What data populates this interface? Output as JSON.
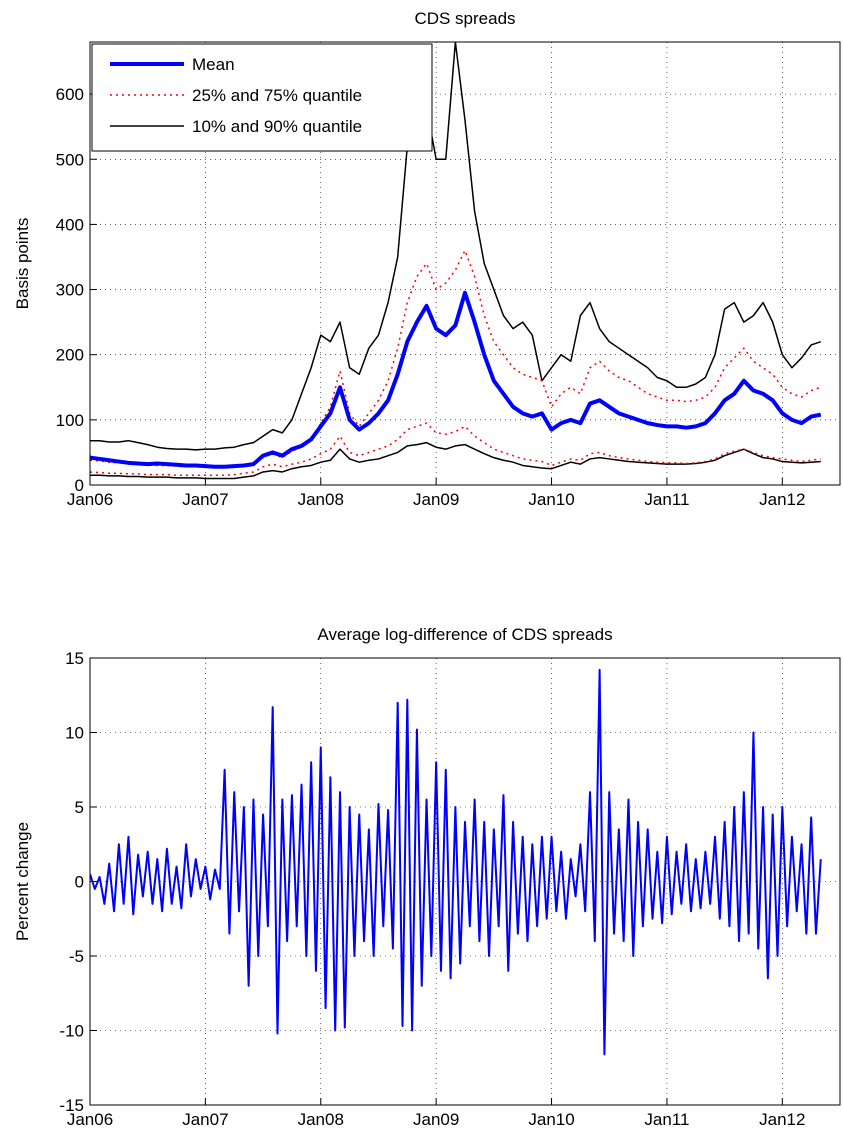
{
  "chart_data": [
    {
      "type": "line",
      "title": "CDS spreads",
      "ylabel": "Basis points",
      "grid": true,
      "legend": "upper left",
      "x": [
        0,
        1,
        2,
        3,
        4,
        5,
        6,
        7,
        8,
        9,
        10,
        11,
        12,
        13,
        14,
        15,
        16,
        17,
        18,
        19,
        20,
        21,
        22,
        23,
        24,
        25,
        26,
        27,
        28,
        29,
        30,
        31,
        32,
        33,
        34,
        35,
        36,
        37,
        38,
        39,
        40,
        41,
        42,
        43,
        44,
        45,
        46,
        47,
        48,
        49,
        50,
        51,
        52,
        53,
        54,
        55,
        56,
        57,
        58,
        59,
        60,
        61,
        62,
        63,
        64,
        65,
        66,
        67,
        68,
        69,
        70,
        71,
        72,
        73,
        74,
        75,
        76
      ],
      "xlim": [
        0,
        78
      ],
      "xticks": [
        {
          "value": 0,
          "label": "Jan06"
        },
        {
          "value": 12,
          "label": "Jan07"
        },
        {
          "value": 24,
          "label": "Jan08"
        },
        {
          "value": 36,
          "label": "Jan09"
        },
        {
          "value": 48,
          "label": "Jan10"
        },
        {
          "value": 60,
          "label": "Jan11"
        },
        {
          "value": 72,
          "label": "Jan12"
        }
      ],
      "ylim": [
        0,
        680
      ],
      "yticks": [
        0,
        100,
        200,
        300,
        400,
        500,
        600
      ],
      "series": [
        {
          "name": "Mean",
          "color": "#0000ff",
          "linestyle": "solid",
          "linewidth": 4,
          "values": [
            42,
            40,
            38,
            36,
            34,
            33,
            32,
            33,
            32,
            31,
            30,
            30,
            29,
            28,
            28,
            29,
            30,
            32,
            45,
            50,
            45,
            55,
            60,
            70,
            90,
            110,
            150,
            100,
            85,
            95,
            110,
            130,
            170,
            220,
            250,
            275,
            240,
            230,
            245,
            295,
            250,
            200,
            160,
            140,
            120,
            110,
            105,
            110,
            85,
            95,
            100,
            95,
            125,
            130,
            120,
            110,
            105,
            100,
            95,
            92,
            90,
            90,
            88,
            90,
            95,
            110,
            130,
            140,
            160,
            145,
            140,
            130,
            110,
            100,
            95,
            105,
            108
          ]
        },
        {
          "name": "25% and 75% quantile",
          "color": "#ff0000",
          "linestyle": "dotted",
          "linewidth": 1.5,
          "lower": [
            20,
            19,
            18,
            18,
            17,
            17,
            16,
            16,
            16,
            15,
            15,
            15,
            15,
            15,
            15,
            16,
            18,
            20,
            28,
            32,
            28,
            32,
            35,
            40,
            48,
            55,
            75,
            50,
            45,
            50,
            55,
            60,
            70,
            85,
            90,
            95,
            80,
            78,
            82,
            90,
            75,
            65,
            55,
            50,
            45,
            40,
            38,
            36,
            30,
            35,
            40,
            38,
            48,
            50,
            45,
            42,
            40,
            38,
            36,
            35,
            34,
            34,
            33,
            34,
            36,
            40,
            48,
            52,
            55,
            50,
            45,
            42,
            40,
            38,
            36,
            38,
            40
          ],
          "upper": [
            38,
            37,
            35,
            34,
            33,
            32,
            31,
            30,
            30,
            29,
            28,
            28,
            27,
            27,
            27,
            28,
            30,
            32,
            42,
            48,
            42,
            52,
            58,
            70,
            95,
            120,
            175,
            110,
            90,
            110,
            130,
            160,
            210,
            280,
            320,
            340,
            300,
            310,
            330,
            360,
            320,
            260,
            220,
            200,
            180,
            170,
            165,
            160,
            120,
            140,
            150,
            140,
            180,
            190,
            175,
            165,
            160,
            150,
            140,
            135,
            130,
            130,
            128,
            130,
            135,
            150,
            180,
            195,
            210,
            190,
            180,
            170,
            150,
            140,
            135,
            145,
            150
          ]
        },
        {
          "name": "10% and 90% quantile",
          "color": "#000000",
          "linestyle": "solid",
          "linewidth": 1.5,
          "lower": [
            15,
            15,
            14,
            14,
            13,
            13,
            12,
            12,
            12,
            11,
            11,
            11,
            10,
            10,
            10,
            10,
            12,
            14,
            20,
            22,
            20,
            25,
            28,
            30,
            35,
            38,
            55,
            40,
            35,
            38,
            40,
            45,
            50,
            60,
            62,
            65,
            58,
            55,
            60,
            62,
            55,
            48,
            42,
            38,
            35,
            30,
            28,
            26,
            25,
            30,
            35,
            32,
            40,
            42,
            40,
            38,
            36,
            35,
            34,
            33,
            32,
            32,
            32,
            33,
            35,
            38,
            45,
            50,
            55,
            48,
            42,
            40,
            36,
            35,
            34,
            35,
            36
          ],
          "upper": [
            68,
            68,
            66,
            66,
            68,
            65,
            62,
            58,
            56,
            55,
            55,
            54,
            55,
            55,
            57,
            58,
            62,
            65,
            75,
            85,
            80,
            100,
            140,
            180,
            230,
            220,
            250,
            180,
            170,
            210,
            230,
            280,
            350,
            520,
            600,
            580,
            500,
            500,
            680,
            560,
            420,
            340,
            300,
            260,
            240,
            250,
            230,
            160,
            180,
            200,
            190,
            260,
            280,
            240,
            220,
            210,
            200,
            190,
            180,
            165,
            160,
            150,
            150,
            155,
            165,
            200,
            270,
            280,
            250,
            260,
            280,
            250,
            200,
            180,
            195,
            215,
            220
          ]
        }
      ]
    },
    {
      "type": "line",
      "title": "Average log-difference of CDS spreads",
      "ylabel": "Percent change",
      "grid": true,
      "x": [
        0,
        0.5,
        1,
        1.5,
        2,
        2.5,
        3,
        3.5,
        4,
        4.5,
        5,
        5.5,
        6,
        6.5,
        7,
        7.5,
        8,
        8.5,
        9,
        9.5,
        10,
        10.5,
        11,
        11.5,
        12,
        12.5,
        13,
        13.5,
        14,
        14.5,
        15,
        15.5,
        16,
        16.5,
        17,
        17.5,
        18,
        18.5,
        19,
        19.5,
        20,
        20.5,
        21,
        21.5,
        22,
        22.5,
        23,
        23.5,
        24,
        24.5,
        25,
        25.5,
        26,
        26.5,
        27,
        27.5,
        28,
        28.5,
        29,
        29.5,
        30,
        30.5,
        31,
        31.5,
        32,
        32.5,
        33,
        33.5,
        34,
        34.5,
        35,
        35.5,
        36,
        36.5,
        37,
        37.5,
        38,
        38.5,
        39,
        39.5,
        40,
        40.5,
        41,
        41.5,
        42,
        42.5,
        43,
        43.5,
        44,
        44.5,
        45,
        45.5,
        46,
        46.5,
        47,
        47.5,
        48,
        48.5,
        49,
        49.5,
        50,
        50.5,
        51,
        51.5,
        52,
        52.5,
        53,
        53.5,
        54,
        54.5,
        55,
        55.5,
        56,
        56.5,
        57,
        57.5,
        58,
        58.5,
        59,
        59.5,
        60,
        60.5,
        61,
        61.5,
        62,
        62.5,
        63,
        63.5,
        64,
        64.5,
        65,
        65.5,
        66,
        66.5,
        67,
        67.5,
        68,
        68.5,
        69,
        69.5,
        70,
        70.5,
        71,
        71.5,
        72,
        72.5,
        73,
        73.5,
        74,
        74.5,
        75,
        75.5,
        76
      ],
      "xlim": [
        0,
        78
      ],
      "xticks": [
        {
          "value": 0,
          "label": "Jan06"
        },
        {
          "value": 12,
          "label": "Jan07"
        },
        {
          "value": 24,
          "label": "Jan08"
        },
        {
          "value": 36,
          "label": "Jan09"
        },
        {
          "value": 48,
          "label": "Jan10"
        },
        {
          "value": 60,
          "label": "Jan11"
        },
        {
          "value": 72,
          "label": "Jan12"
        }
      ],
      "ylim": [
        -15,
        15
      ],
      "yticks": [
        -15,
        -10,
        -5,
        0,
        5,
        10,
        15
      ],
      "series": [
        {
          "color": "#0000ff",
          "linestyle": "solid",
          "linewidth": 2,
          "values": [
            0.5,
            -0.5,
            0.3,
            -1.5,
            1.2,
            -2,
            2.5,
            -1.5,
            3,
            -2.2,
            1.8,
            -1,
            2,
            -1.5,
            1.5,
            -2,
            2.2,
            -1.5,
            1,
            -1.8,
            2.5,
            -1,
            1.5,
            -0.5,
            1,
            -1.2,
            0.8,
            -0.5,
            7.5,
            -3.5,
            6,
            -2,
            5,
            -7,
            5.5,
            -5,
            4.5,
            -3,
            11.7,
            -10.2,
            5.5,
            -4,
            5.8,
            -3,
            6.5,
            -5,
            8,
            -6,
            9,
            -8.5,
            7,
            -10,
            6,
            -9.8,
            5,
            -5,
            4.5,
            -4,
            3.5,
            -5,
            5.2,
            -3,
            4.8,
            -4.5,
            12,
            -9.7,
            12.2,
            -10,
            10.2,
            -7,
            5.5,
            -5,
            8,
            -6,
            7.5,
            -6.5,
            5,
            -5.5,
            4,
            -3,
            5.5,
            -4,
            4,
            -5,
            3.5,
            -3,
            5.8,
            -6,
            4,
            -3.5,
            3,
            -4,
            2.5,
            -3,
            3,
            -2.5,
            3,
            -2,
            2,
            -2.5,
            1.5,
            -1,
            2.5,
            -2,
            6,
            -4,
            14.2,
            -11.6,
            6,
            -3.5,
            3.5,
            -4,
            5.5,
            -5,
            4,
            -3,
            3.5,
            -2.5,
            2,
            -2.8,
            3,
            -2.2,
            2,
            -1.5,
            2.5,
            -2,
            1.5,
            -1.8,
            2,
            -1.5,
            3,
            -2.5,
            4,
            -3,
            5,
            -4,
            6,
            -3.5,
            10,
            -4.5,
            5,
            -6.5,
            4.5,
            -5,
            5,
            -3,
            3,
            -2,
            2.5,
            -3.5,
            4.3,
            -3.5,
            1.5
          ]
        }
      ]
    }
  ]
}
